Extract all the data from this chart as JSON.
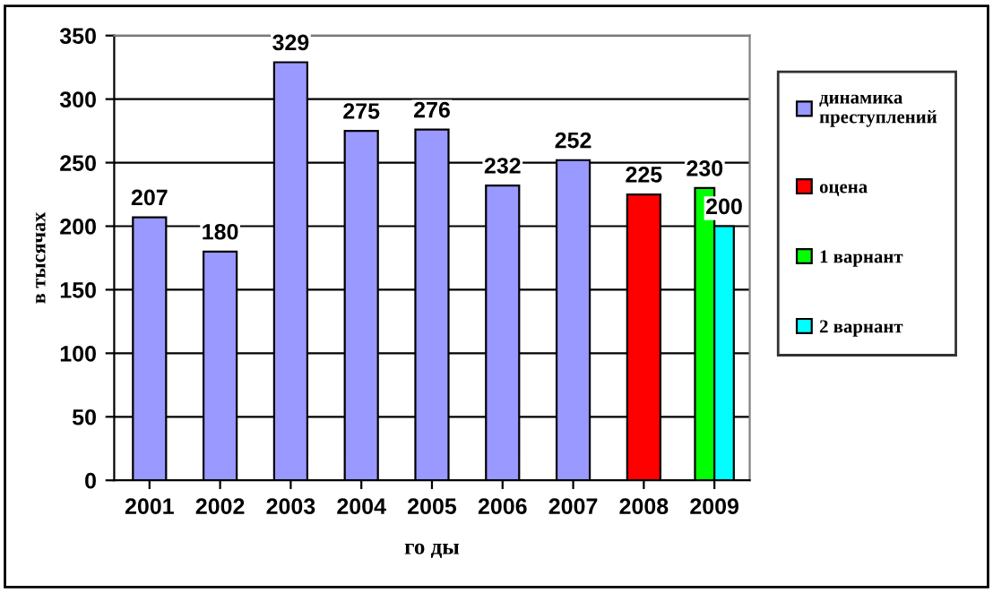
{
  "chart_data": {
    "type": "bar",
    "xlabel": "го ды",
    "ylabel": "в тысячах",
    "categories": [
      "2001",
      "2002",
      "2003",
      "2004",
      "2005",
      "2006",
      "2007",
      "2008",
      "2009"
    ],
    "series": [
      {
        "name": "динамика\nпреступлений",
        "color": "#9999ff",
        "values": [
          207,
          180,
          329,
          275,
          276,
          232,
          252,
          null,
          null
        ]
      },
      {
        "name": "оцена",
        "color": "#ff0000",
        "values": [
          null,
          null,
          null,
          null,
          null,
          null,
          null,
          225,
          null
        ]
      },
      {
        "name": "1 варнант",
        "color": "#00ff00",
        "values": [
          null,
          null,
          null,
          null,
          null,
          null,
          null,
          null,
          230
        ]
      },
      {
        "name": "2 варнант",
        "color": "#00ffff",
        "values": [
          null,
          null,
          null,
          null,
          null,
          null,
          null,
          null,
          200
        ]
      }
    ],
    "ylim": [
      0,
      350
    ],
    "yticks": [
      0,
      50,
      100,
      150,
      200,
      250,
      300,
      350
    ],
    "grid": "y",
    "legend": "right",
    "data_labels": true
  }
}
